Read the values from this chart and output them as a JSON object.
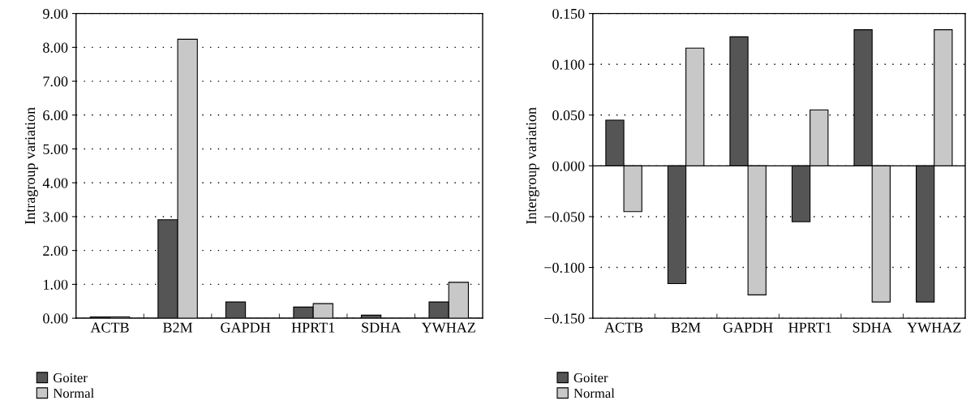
{
  "chart_data": [
    {
      "type": "bar",
      "ylabel": "Intragroup variation",
      "categories": [
        "ACTB",
        "B2M",
        "GAPDH",
        "HPRT1",
        "SDHA",
        "YWHAZ"
      ],
      "series": [
        {
          "name": "Goiter",
          "color": "#555555",
          "values": [
            0.04,
            2.91,
            0.48,
            0.33,
            0.09,
            0.48
          ]
        },
        {
          "name": "Normal",
          "color": "#c8c8c8",
          "values": [
            0.04,
            8.24,
            null,
            0.43,
            null,
            1.06
          ]
        }
      ],
      "ylim": [
        0,
        9
      ],
      "yticks": [
        {
          "value": 0,
          "label": "0.00"
        },
        {
          "value": 1,
          "label": "1.00"
        },
        {
          "value": 2,
          "label": "2.00"
        },
        {
          "value": 3,
          "label": "3.00"
        },
        {
          "value": 4,
          "label": "4.00"
        },
        {
          "value": 5,
          "label": "5.00"
        },
        {
          "value": 6,
          "label": "6.00"
        },
        {
          "value": 7,
          "label": "7.00"
        },
        {
          "value": 8,
          "label": "8.00"
        },
        {
          "value": 9,
          "label": "9.00"
        }
      ],
      "grid": "y",
      "legend": "bottom left"
    },
    {
      "type": "bar",
      "ylabel": "Intergroup variation",
      "categories": [
        "ACTB",
        "B2M",
        "GAPDH",
        "HPRT1",
        "SDHA",
        "YWHAZ"
      ],
      "series": [
        {
          "name": "Goiter",
          "color": "#555555",
          "values": [
            0.045,
            -0.116,
            0.127,
            -0.055,
            0.134,
            -0.134
          ]
        },
        {
          "name": "Normal",
          "color": "#c8c8c8",
          "values": [
            -0.045,
            0.116,
            -0.127,
            0.055,
            -0.134,
            0.134
          ]
        }
      ],
      "ylim": [
        -0.15,
        0.15
      ],
      "yticks": [
        {
          "value": -0.15,
          "label": "−0.150"
        },
        {
          "value": -0.1,
          "label": "−0.100"
        },
        {
          "value": -0.05,
          "label": "−0.050"
        },
        {
          "value": 0,
          "label": "0.000"
        },
        {
          "value": 0.05,
          "label": "0.050"
        },
        {
          "value": 0.1,
          "label": "0.100"
        },
        {
          "value": 0.15,
          "label": "0.150"
        }
      ],
      "grid": "y",
      "legend": "bottom left"
    }
  ]
}
